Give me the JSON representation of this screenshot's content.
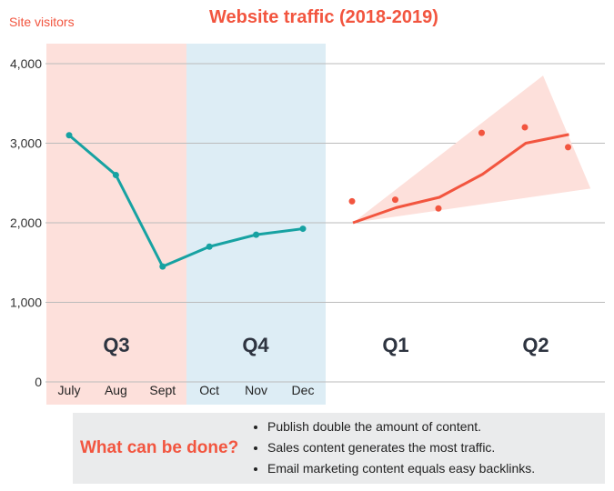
{
  "header": {
    "title": "Website traffic (2018-2019)",
    "y_axis_title": "Site visitors"
  },
  "colors": {
    "accent": "#f2553f",
    "q3_band": "#fde0db",
    "q4_band": "#ddedf5",
    "actual_line": "#17a2a2",
    "forecast_line": "#f2553f",
    "forecast_band": "#fde0db",
    "grid": "#bbbbbb",
    "panel_bg": "#eaebec"
  },
  "chart_data": {
    "type": "line",
    "title": "Website traffic (2018-2019)",
    "ylabel": "Site visitors",
    "ylim": [
      0,
      4000
    ],
    "y_ticks": [
      0,
      1000,
      2000,
      3000,
      4000
    ],
    "y_tick_labels": [
      "0",
      "1,000",
      "2,000",
      "3,000",
      "4,000"
    ],
    "grid": true,
    "categories": [
      "July",
      "Aug",
      "Sept",
      "Oct",
      "Nov",
      "Dec"
    ],
    "quarters": [
      "Q3",
      "Q4",
      "Q1",
      "Q2"
    ],
    "series": [
      {
        "kind": "actual",
        "values": [
          3100,
          2600,
          1450,
          1700,
          1850,
          1925
        ]
      },
      {
        "kind": "forecast",
        "values": [
          2000,
          2190,
          2320,
          2610,
          3000,
          3110
        ]
      }
    ],
    "forecast_points": [
      2270,
      2290,
      2180,
      3130,
      3200,
      2950
    ],
    "forecast_band_corners": [
      [
        0,
        2000
      ],
      [
        4.4,
        3850
      ],
      [
        5.5,
        2430
      ]
    ]
  },
  "panel": {
    "title": "What can be done?",
    "items": [
      "Publish double the amount of content.",
      "Sales content generates the most traffic.",
      "Email marketing content equals easy backlinks."
    ]
  }
}
